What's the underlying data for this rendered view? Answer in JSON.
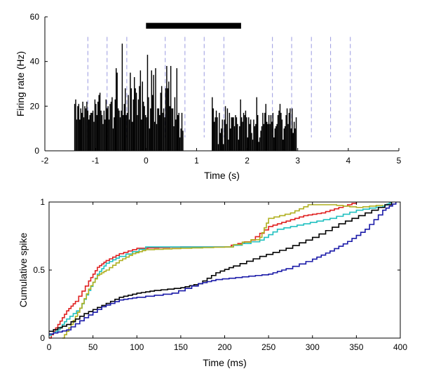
{
  "chart_data": [
    {
      "type": "bar",
      "title": "",
      "xlabel": "Time (s)",
      "ylabel": "Firing rate (Hz)",
      "xlim": [
        -2,
        5
      ],
      "ylim": [
        0,
        60
      ],
      "xticks": [
        -2,
        -1,
        0,
        1,
        2,
        3,
        4,
        5
      ],
      "yticks": [
        0,
        20,
        40,
        60
      ],
      "stimulus_bar": [
        0,
        1.88
      ],
      "event_markers": [
        -1.15,
        -0.77,
        -0.38,
        0.38,
        0.77,
        1.15,
        1.54,
        2.5,
        2.88,
        3.27,
        3.65,
        4.04
      ],
      "bin_width": 0.02,
      "start": -1.42,
      "values": [
        21,
        23,
        14,
        20,
        21,
        14,
        19,
        17,
        22,
        15,
        20,
        19,
        22,
        18,
        14,
        16,
        17,
        17,
        18,
        13,
        23,
        21,
        16,
        22,
        25,
        26,
        18,
        16,
        12,
        18,
        14,
        23,
        19,
        20,
        14,
        21,
        22,
        24,
        10,
        15,
        23,
        37,
        35,
        19,
        18,
        15,
        18,
        48,
        16,
        21,
        28,
        16,
        17,
        25,
        14,
        35,
        28,
        13,
        23,
        33,
        28,
        26,
        16,
        23,
        29,
        36,
        14,
        31,
        22,
        20,
        16,
        15,
        43,
        24,
        10,
        19,
        36,
        25,
        34,
        13,
        37,
        12,
        19,
        19,
        16,
        26,
        29,
        17,
        19,
        15,
        28,
        38,
        28,
        31,
        20,
        38,
        19,
        19,
        11,
        24,
        14,
        37,
        16,
        17,
        6,
        10,
        17,
        9,
        0,
        0,
        0,
        0,
        0,
        0,
        0,
        0,
        0,
        0,
        0,
        0,
        0,
        0,
        0,
        0,
        0,
        0,
        0,
        0,
        0,
        0,
        0,
        0,
        0,
        0,
        0,
        0,
        24,
        19,
        13,
        15,
        18,
        15,
        3,
        17,
        8,
        10,
        14,
        3,
        14,
        20,
        12,
        19,
        5,
        17,
        10,
        15,
        15,
        15,
        11,
        16,
        15,
        12,
        5,
        11,
        23,
        15,
        13,
        17,
        16,
        18,
        15,
        6,
        15,
        12,
        14,
        8,
        5,
        14,
        11,
        12,
        24,
        16,
        4,
        6,
        9,
        11,
        17,
        12,
        17,
        21,
        13,
        12,
        16,
        12,
        16,
        13,
        17,
        6,
        10,
        11,
        12,
        16,
        18,
        21,
        17,
        14,
        5,
        10,
        11,
        16,
        19,
        12,
        17,
        19,
        10,
        19,
        8,
        13,
        10,
        15
      ]
    },
    {
      "type": "line",
      "title": "",
      "xlabel": "Time (ms)",
      "ylabel": "Cumulative spike",
      "xlim": [
        0,
        400
      ],
      "ylim": [
        0,
        1
      ],
      "xticks": [
        0,
        50,
        100,
        150,
        200,
        250,
        300,
        350,
        400
      ],
      "yticks": [
        0,
        0.5,
        1
      ],
      "ytick_labels": [
        "0",
        "0.5",
        "1"
      ],
      "series": [
        {
          "name": "red",
          "color": "#e02020",
          "x": [
            0,
            10,
            20,
            30,
            45,
            55,
            65,
            80,
            100,
            150,
            200,
            230,
            250,
            270,
            290,
            310,
            330,
            350
          ],
          "y": [
            0,
            0.1,
            0.2,
            0.27,
            0.42,
            0.52,
            0.57,
            0.62,
            0.66,
            0.67,
            0.67,
            0.72,
            0.82,
            0.86,
            0.9,
            0.92,
            0.96,
            1.0
          ]
        },
        {
          "name": "cyan",
          "color": "#20c0c0",
          "x": [
            0,
            10,
            20,
            35,
            45,
            55,
            65,
            80,
            110,
            150,
            200,
            240,
            260,
            290,
            320,
            350,
            380,
            390
          ],
          "y": [
            0.02,
            0.06,
            0.14,
            0.22,
            0.35,
            0.47,
            0.55,
            0.6,
            0.67,
            0.67,
            0.67,
            0.72,
            0.8,
            0.84,
            0.88,
            0.94,
            0.97,
            1.0
          ]
        },
        {
          "name": "yellow",
          "color": "#b0b020",
          "x": [
            15,
            25,
            35,
            45,
            55,
            65,
            80,
            95,
            110,
            150,
            200,
            240,
            250,
            275,
            295,
            320,
            350,
            380
          ],
          "y": [
            0,
            0.1,
            0.22,
            0.36,
            0.46,
            0.5,
            0.57,
            0.62,
            0.65,
            0.66,
            0.67,
            0.74,
            0.88,
            0.92,
            0.98,
            0.98,
            0.96,
            0.98
          ]
        },
        {
          "name": "black",
          "color": "#000000",
          "x": [
            0,
            20,
            40,
            60,
            80,
            100,
            120,
            150,
            170,
            190,
            210,
            240,
            270,
            300,
            330,
            360,
            390
          ],
          "y": [
            0.05,
            0.1,
            0.18,
            0.24,
            0.3,
            0.33,
            0.35,
            0.37,
            0.4,
            0.48,
            0.53,
            0.6,
            0.66,
            0.74,
            0.84,
            0.92,
            1.0
          ]
        },
        {
          "name": "blue",
          "color": "#1a1aa8",
          "x": [
            0,
            20,
            40,
            60,
            80,
            100,
            140,
            170,
            190,
            220,
            250,
            270,
            300,
            320,
            340,
            360,
            380,
            395
          ],
          "y": [
            0.03,
            0.06,
            0.15,
            0.23,
            0.28,
            0.3,
            0.33,
            0.4,
            0.43,
            0.45,
            0.47,
            0.51,
            0.58,
            0.64,
            0.71,
            0.8,
            0.94,
            1.0
          ]
        }
      ]
    }
  ]
}
